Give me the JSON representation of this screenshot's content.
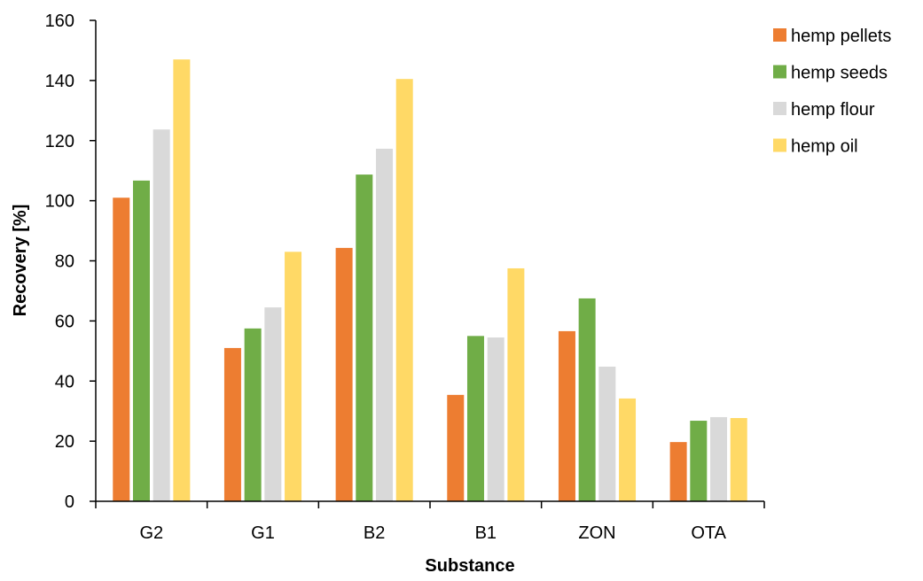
{
  "chart_data": {
    "type": "bar",
    "title": "",
    "xlabel": "Substance",
    "ylabel": "Recovery [%]",
    "ylim": [
      0,
      160
    ],
    "yticks": [
      0,
      20,
      40,
      60,
      80,
      100,
      120,
      140,
      160
    ],
    "grid": false,
    "legend_position": "top-right",
    "categories": [
      "G2",
      "G1",
      "B2",
      "B1",
      "ZON",
      "OTA"
    ],
    "series": [
      {
        "name": "hemp pellets",
        "color": "#ED7D31",
        "values": [
          101,
          51,
          84.3,
          35.4,
          56.6,
          19.7
        ]
      },
      {
        "name": "hemp seeds",
        "color": "#70AD47",
        "values": [
          106.7,
          57.5,
          108.7,
          55,
          67.5,
          26.8
        ]
      },
      {
        "name": "hemp flour",
        "color": "#D9D9D9",
        "values": [
          123.7,
          64.5,
          117.3,
          54.5,
          44.8,
          28
        ]
      },
      {
        "name": "hemp oil",
        "color": "#FFD966",
        "values": [
          147,
          83,
          140.5,
          77.5,
          34.2,
          27.7
        ]
      }
    ]
  }
}
